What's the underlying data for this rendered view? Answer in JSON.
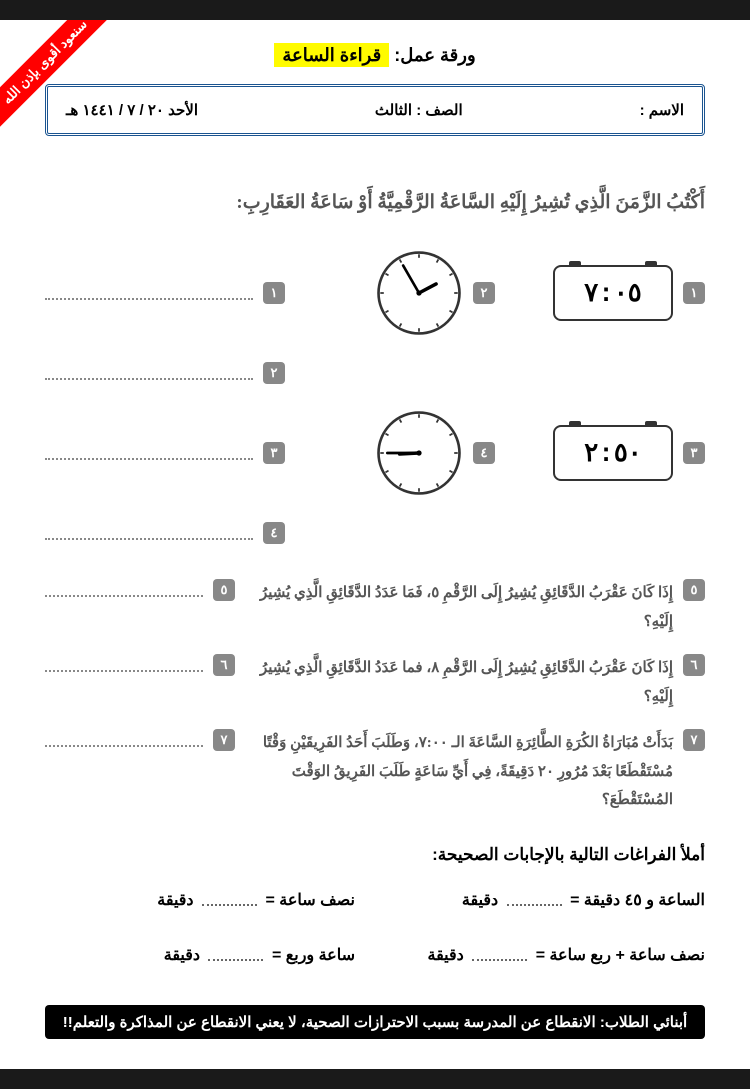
{
  "ribbon": "سنعود أقوى بإذن الله",
  "title_prefix": "ورقة عمل:",
  "title_hl": "قراءة الساعة",
  "info": {
    "name_label": "الاسم :",
    "class_label": "الصف :",
    "class_value": "الثالث",
    "date": "الأحد ٢٠ / ٧ / ١٤٤١ هـ"
  },
  "instruction": "أَكْتُبُ الزَّمَنَ الَّذِي تُشِيرُ إِلَيْهِ السَّاعَةُ الرَّقْمِيَّةُ أَوْ سَاعَةُ العَقَارِبِ:",
  "digital1": "٧:٠٥",
  "digital2": "٢:٥٠",
  "analog1": {
    "hour_angle": 62,
    "minute_angle": -30
  },
  "analog2": {
    "hour_angle": -93,
    "minute_angle": -90
  },
  "nums": {
    "n1": "١",
    "n2": "٢",
    "n3": "٣",
    "n4": "٤",
    "n5": "٥",
    "n6": "٦",
    "n7": "٧"
  },
  "q5": "إِذَا كَانَ عَقْرَبُ الدَّقَائِقِ يُشِيرُ إِلَى الرَّقْمِ ٥، فَمَا عَدَدُ الدَّقَائِقِ الَّذِي يُشِيرُ إِلَيْهِ؟",
  "q6": "إِذَا كَانَ عَقْرَبُ الدَّقَائِقِ يُشِيرُ إِلَى الرَّقْمِ ٨، فما عَدَدُ الدَّقَائِقِ الَّذِي يُشِيرُ إِلَيْهِ؟",
  "q7": "بَدَأَتْ مُبَارَاةُ الكُرَةِ الطَّائِرَةِ السَّاعَةَ الـ ٧:٠٠، وَطَلَبَ أَحَدُ الفَرِيقَيْنِ وَقْتًا مُسْتَقْطَعًا بَعْدَ مُرُورِ ٢٠ دَقِيقَةً، فِي أَيِّ سَاعَةٍ طَلَبَ الفَرِيقُ الوَقْتَ المُسْتَقْطَعَ؟",
  "fill_title": "أملأ الفراغات التالية بالإجابات الصحيحة:",
  "fill": {
    "a_r": "الساعة و ٤٥ دقيقة =",
    "a_unit": "دقيقة",
    "b_r": "نصف ساعة =",
    "b_unit": "دقيقة",
    "c_r": "نصف ساعة + ربع ساعة =",
    "c_unit": "دقيقة",
    "d_r": "ساعة وربع =",
    "d_unit": "دقيقة"
  },
  "footer": "أبنائي الطلاب: الانقطاع عن المدرسة بسبب الاحترازات الصحية، لا يعني الانقطاع عن المذاكرة والتعلم!!",
  "colors": {
    "ribbon": "#ff0000",
    "border": "#1a5490",
    "highlight": "#fffb00",
    "badge": "#888888"
  }
}
